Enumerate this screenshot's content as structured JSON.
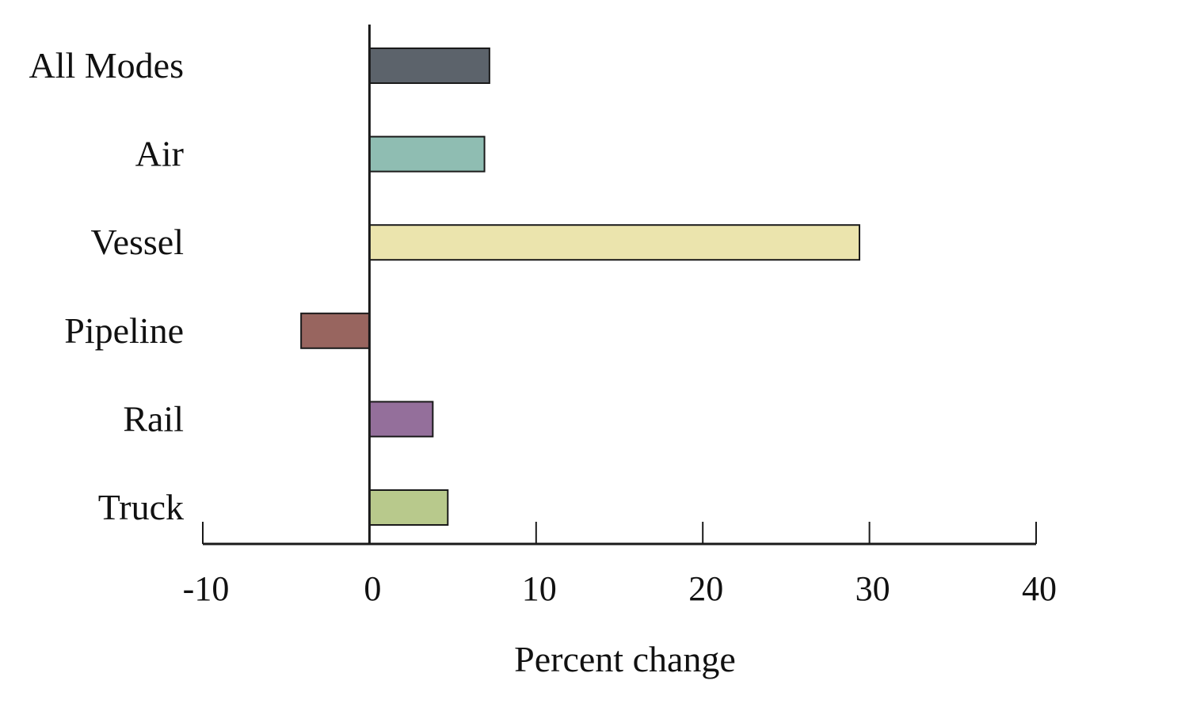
{
  "chart_data": {
    "type": "bar",
    "orientation": "horizontal",
    "categories": [
      "All Modes",
      "Air",
      "Vessel",
      "Pipeline",
      "Rail",
      "Truck"
    ],
    "values": [
      7.2,
      6.9,
      29.4,
      -4.1,
      3.8,
      4.7
    ],
    "colors": [
      "#5c636b",
      "#8fbdb2",
      "#ebe4ad",
      "#98655f",
      "#946f9b",
      "#b8c98c"
    ],
    "xlabel": "Percent change",
    "ylabel": "",
    "xlim": [
      -10,
      40
    ],
    "xticks": [
      -10,
      0,
      10,
      20,
      30,
      40
    ],
    "xtick_labels": [
      "-10",
      "0",
      "10",
      "20",
      "30",
      "40"
    ],
    "grid": false,
    "legend": "none"
  }
}
